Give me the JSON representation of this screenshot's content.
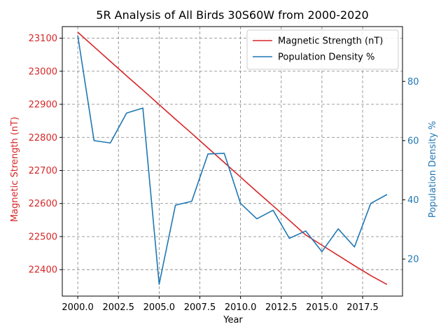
{
  "chart_data": {
    "type": "line",
    "title": "5R Analysis of All Birds 30S60W from 2000-2020",
    "xlabel": "Year",
    "ylabel_left": "Magnetic Strength (nT)",
    "ylabel_right": "Population Density %",
    "xlim": [
      1999.05,
      2019.95
    ],
    "ylim_left": [
      22320,
      23135
    ],
    "ylim_right": [
      7.5,
      98.5
    ],
    "x_ticks": [
      2000.0,
      2002.5,
      2005.0,
      2007.5,
      2010.0,
      2012.5,
      2015.0,
      2017.5
    ],
    "x_tick_labels": [
      "2000.0",
      "2002.5",
      "2005.0",
      "2007.5",
      "2010.0",
      "2012.5",
      "2015.0",
      "2017.5"
    ],
    "y_left_ticks": [
      22400,
      22500,
      22600,
      22700,
      22800,
      22900,
      23000,
      23100
    ],
    "y_left_tick_labels": [
      "22400",
      "22500",
      "22600",
      "22700",
      "22800",
      "22900",
      "23000",
      "23100"
    ],
    "y_right_ticks": [
      20,
      40,
      60,
      80
    ],
    "y_right_tick_labels": [
      "20",
      "40",
      "60",
      "80"
    ],
    "grid": true,
    "legend_position": "top-right",
    "x": [
      2000,
      2001,
      2002,
      2003,
      2004,
      2005,
      2006,
      2007,
      2008,
      2009,
      2010,
      2011,
      2012,
      2013,
      2014,
      2015,
      2016,
      2017,
      2018,
      2019
    ],
    "series": [
      {
        "name": "Magnetic Strength (nT)",
        "axis": "left",
        "color": "#d62728",
        "values": [
          23118,
          23074,
          23030,
          22986,
          22943,
          22899,
          22855,
          22812,
          22768,
          22724,
          22680,
          22636,
          22593,
          22549,
          22505,
          22474,
          22443,
          22412,
          22382,
          22355
        ]
      },
      {
        "name": "Population Density %",
        "axis": "right",
        "color": "#1f77b4",
        "values": [
          95.5,
          60.0,
          59.2,
          69.3,
          71.0,
          11.5,
          38.2,
          39.5,
          55.5,
          55.7,
          38.8,
          33.6,
          36.5,
          27.0,
          29.5,
          22.5,
          30.2,
          24.1,
          38.8,
          41.8
        ]
      }
    ]
  }
}
